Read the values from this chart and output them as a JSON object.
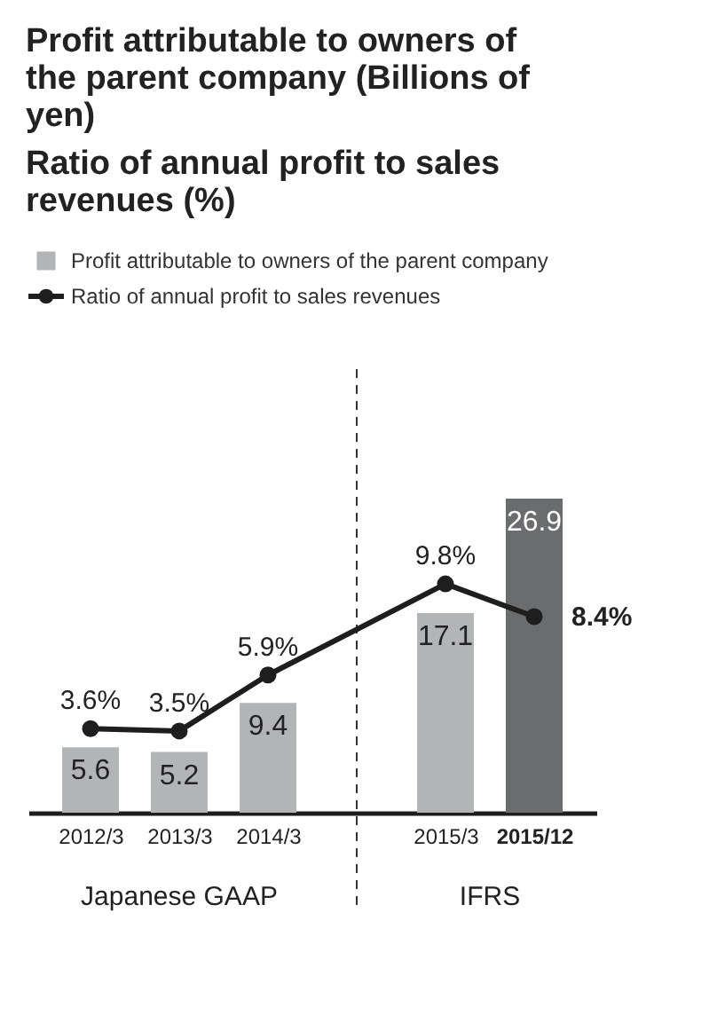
{
  "chart_data": {
    "type": "bar",
    "title": "Profit attributable to owners of the parent company (Billions of yen)",
    "subtitle": "Ratio of annual profit to sales revenues (%)",
    "categories": [
      "2012/3",
      "2013/3",
      "2014/3",
      null,
      "2015/3",
      "2015/12"
    ],
    "series": [
      {
        "name": "Profit attributable to owners of the parent company",
        "colors": [
          "#b3b4b6",
          "#b3b4b6",
          "#b3b4b6",
          null,
          "#b3b4b6",
          "#6b6c6e"
        ],
        "values": [
          5.6,
          5.2,
          9.4,
          null,
          17.1,
          26.9
        ],
        "value_labels": [
          "5.6",
          "5.2",
          "9.4",
          null,
          "17.1",
          "26.9"
        ]
      },
      {
        "name": "Ratio of annual profit to sales revenues",
        "type": "line",
        "axis": "y2",
        "color": "#1e1e1e",
        "marker": "circle",
        "line_style": "solid",
        "values": [
          3.6,
          3.5,
          5.9,
          null,
          9.8,
          8.4
        ],
        "value_labels": [
          "3.6%",
          "3.5%",
          "5.9%",
          null,
          "9.8%",
          "8.4%"
        ]
      }
    ],
    "ylim": [
      0,
      38
    ],
    "y2lim": [
      0,
      19
    ],
    "ref_lines": [
      {
        "axis": "x",
        "line_style": "dashed",
        "color": "#333333"
      }
    ],
    "annotations": [
      "Japanese GAAP",
      "IFRS"
    ],
    "legend": "top left"
  }
}
